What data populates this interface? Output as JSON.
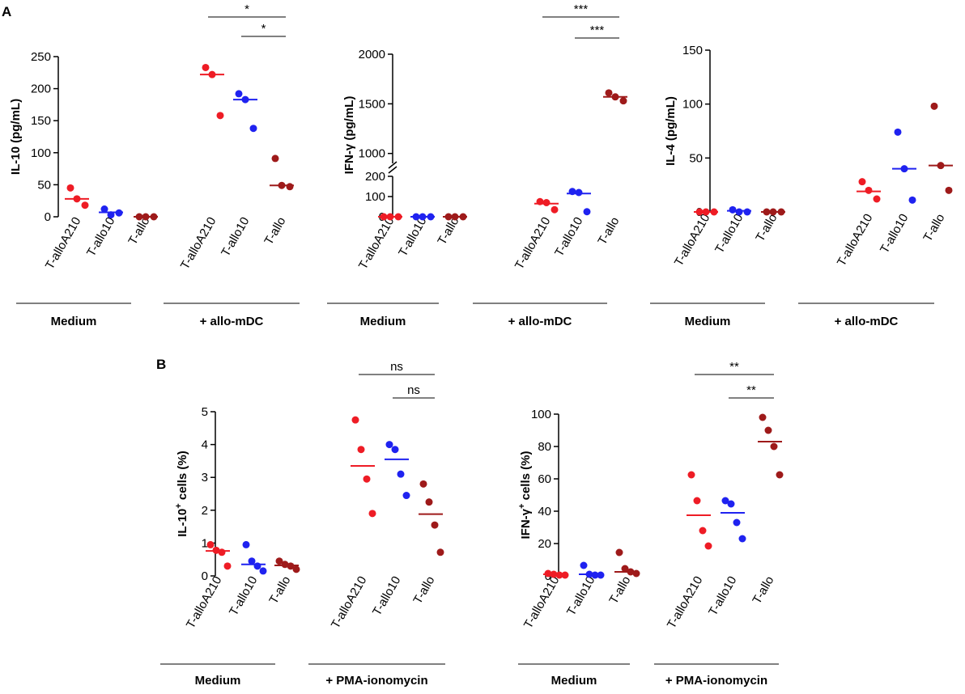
{
  "figure": {
    "panel_a_label": "A",
    "panel_b_label": "B",
    "colors": {
      "T-alloA210": "#ee1c25",
      "T-allo10": "#1f22f0",
      "T-allo": "#9e1a1a"
    }
  },
  "chart_data": [
    {
      "id": "il10",
      "type": "scatter",
      "ylabel": "IL-10 (pg/mL)",
      "ylim": [
        0,
        250
      ],
      "yticks": [
        0,
        50,
        100,
        150,
        200,
        250
      ],
      "categories": [
        "T-alloA210",
        "T-allo10",
        "T-allo",
        "T-alloA210",
        "T-allo10",
        "T-allo"
      ],
      "groups": [
        {
          "label": "Medium",
          "indices": [
            0,
            1,
            2
          ]
        },
        {
          "label": "+ allo-mDC",
          "indices": [
            3,
            4,
            5
          ]
        }
      ],
      "series": [
        {
          "name": "T-alloA210",
          "condition": "Medium",
          "values": [
            45,
            28,
            18
          ],
          "mean": 28
        },
        {
          "name": "T-allo10",
          "condition": "Medium",
          "values": [
            12,
            3,
            6
          ],
          "mean": 7
        },
        {
          "name": "T-allo",
          "condition": "Medium",
          "values": [
            0,
            0,
            0
          ],
          "mean": 0
        },
        {
          "name": "T-alloA210",
          "condition": "+ allo-mDC",
          "values": [
            233,
            222,
            158
          ],
          "mean": 222
        },
        {
          "name": "T-allo10",
          "condition": "+ allo-mDC",
          "values": [
            192,
            183,
            138
          ],
          "mean": 183
        },
        {
          "name": "T-allo",
          "condition": "+ allo-mDC",
          "values": [
            91,
            49,
            47
          ],
          "mean": 49
        }
      ],
      "annotations": [
        {
          "from": 3,
          "to": 5,
          "text": "*"
        },
        {
          "from": 4,
          "to": 5,
          "text": "*"
        }
      ]
    },
    {
      "id": "ifng",
      "type": "scatter",
      "ylabel": "IFN-γ (pg/mL)",
      "broken_axis": {
        "lower": [
          0,
          200
        ],
        "upper": [
          900,
          2000
        ]
      },
      "yticks": [
        0,
        100,
        200,
        1000,
        1500,
        2000
      ],
      "categories": [
        "T-alloA210",
        "T-allo10",
        "T-allo",
        "T-alloA210",
        "T-allo10",
        "T-allo"
      ],
      "groups": [
        {
          "label": "Medium",
          "indices": [
            0,
            1,
            2
          ]
        },
        {
          "label": "+ allo-mDC",
          "indices": [
            3,
            4,
            5
          ]
        }
      ],
      "series": [
        {
          "name": "T-alloA210",
          "condition": "Medium",
          "values": [
            0,
            0,
            0
          ],
          "mean": 0
        },
        {
          "name": "T-allo10",
          "condition": "Medium",
          "values": [
            0,
            0,
            0
          ],
          "mean": 0
        },
        {
          "name": "T-allo",
          "condition": "Medium",
          "values": [
            0,
            0,
            0
          ],
          "mean": 0
        },
        {
          "name": "T-alloA210",
          "condition": "+ allo-mDC",
          "values": [
            75,
            70,
            35
          ],
          "mean": 65
        },
        {
          "name": "T-allo10",
          "condition": "+ allo-mDC",
          "values": [
            125,
            120,
            25
          ],
          "mean": 115
        },
        {
          "name": "T-allo",
          "condition": "+ allo-mDC",
          "values": [
            1610,
            1570,
            1530
          ],
          "mean": 1570
        }
      ],
      "annotations": [
        {
          "from": 3,
          "to": 5,
          "text": "***"
        },
        {
          "from": 4,
          "to": 5,
          "text": "***"
        }
      ]
    },
    {
      "id": "il4",
      "type": "scatter",
      "ylabel": "IL-4 (pg/mL)",
      "ylim": [
        0,
        150
      ],
      "yticks": [
        0,
        50,
        100,
        150
      ],
      "categories": [
        "T-alloA210",
        "T-allo10",
        "T-allo",
        "T-alloA210",
        "T-allo10",
        "T-allo"
      ],
      "groups": [
        {
          "label": "Medium",
          "indices": [
            0,
            1,
            2
          ]
        },
        {
          "label": "+ allo-mDC",
          "indices": [
            3,
            4,
            5
          ]
        }
      ],
      "series": [
        {
          "name": "T-alloA210",
          "condition": "Medium",
          "values": [
            0,
            0,
            0
          ],
          "mean": 0
        },
        {
          "name": "T-allo10",
          "condition": "Medium",
          "values": [
            2,
            0,
            0
          ],
          "mean": 1
        },
        {
          "name": "T-allo",
          "condition": "Medium",
          "values": [
            0,
            0,
            0
          ],
          "mean": 0
        },
        {
          "name": "T-alloA210",
          "condition": "+ allo-mDC",
          "values": [
            28,
            20,
            12
          ],
          "mean": 19
        },
        {
          "name": "T-allo10",
          "condition": "+ allo-mDC",
          "values": [
            74,
            40,
            11
          ],
          "mean": 40
        },
        {
          "name": "T-allo",
          "condition": "+ allo-mDC",
          "values": [
            98,
            43,
            20
          ],
          "mean": 43
        }
      ],
      "annotations": []
    },
    {
      "id": "il10cells",
      "type": "scatter",
      "ylabel": "IL-10",
      "ylabel_sup": "+",
      "ylabel_suffix": " cells (%)",
      "ylim": [
        0,
        5
      ],
      "yticks": [
        0,
        1,
        2,
        3,
        4,
        5
      ],
      "categories": [
        "T-alloA210",
        "T-allo10",
        "T-allo",
        "T-alloA210",
        "T-allo10",
        "T-allo"
      ],
      "groups": [
        {
          "label": "Medium",
          "indices": [
            0,
            1,
            2
          ]
        },
        {
          "label": "+ PMA-ionomycin",
          "indices": [
            3,
            4,
            5
          ]
        }
      ],
      "series": [
        {
          "name": "T-alloA210",
          "condition": "Medium",
          "values": [
            0.95,
            0.78,
            0.72,
            0.3
          ],
          "mean": 0.76
        },
        {
          "name": "T-allo10",
          "condition": "Medium",
          "values": [
            0.95,
            0.45,
            0.3,
            0.15
          ],
          "mean": 0.35
        },
        {
          "name": "T-allo",
          "condition": "Medium",
          "values": [
            0.45,
            0.35,
            0.3,
            0.2
          ],
          "mean": 0.32
        },
        {
          "name": "T-alloA210",
          "condition": "+ PMA-ionomycin",
          "values": [
            4.75,
            3.85,
            2.95,
            1.9
          ],
          "mean": 3.35
        },
        {
          "name": "T-allo10",
          "condition": "+ PMA-ionomycin",
          "values": [
            4.0,
            3.85,
            3.1,
            2.45
          ],
          "mean": 3.55
        },
        {
          "name": "T-allo",
          "condition": "+ PMA-ionomycin",
          "values": [
            2.8,
            2.25,
            1.55,
            0.72
          ],
          "mean": 1.88
        }
      ],
      "annotations": [
        {
          "from": 3,
          "to": 5,
          "text": "ns"
        },
        {
          "from": 4,
          "to": 5,
          "text": "ns"
        }
      ]
    },
    {
      "id": "ifngcells",
      "type": "scatter",
      "ylabel": "IFN-γ",
      "ylabel_sup": "+",
      "ylabel_suffix": " cells (%)",
      "ylim": [
        0,
        100
      ],
      "yticks": [
        0,
        20,
        40,
        60,
        80,
        100
      ],
      "categories": [
        "T-alloA210",
        "T-allo10",
        "T-allo",
        "T-alloA210",
        "T-allo10",
        "T-allo"
      ],
      "groups": [
        {
          "label": "Medium",
          "indices": [
            0,
            1,
            2
          ]
        },
        {
          "label": "+ PMA-ionomycin",
          "indices": [
            3,
            4,
            5
          ]
        }
      ],
      "series": [
        {
          "name": "T-alloA210",
          "condition": "Medium",
          "values": [
            1.5,
            1,
            0.5,
            0.5
          ],
          "mean": 1
        },
        {
          "name": "T-allo10",
          "condition": "Medium",
          "values": [
            6.5,
            1,
            0.5,
            0.5
          ],
          "mean": 1
        },
        {
          "name": "T-allo",
          "condition": "Medium",
          "values": [
            14.5,
            4.5,
            2.5,
            1.5
          ],
          "mean": 2.5
        },
        {
          "name": "T-alloA210",
          "condition": "+ PMA-ionomycin",
          "values": [
            62.5,
            46.5,
            28,
            18.5
          ],
          "mean": 37.5
        },
        {
          "name": "T-allo10",
          "condition": "+ PMA-ionomycin",
          "values": [
            46.5,
            44.5,
            33,
            23
          ],
          "mean": 39
        },
        {
          "name": "T-allo",
          "condition": "+ PMA-ionomycin",
          "values": [
            98,
            90,
            80,
            62.5
          ],
          "mean": 83
        }
      ],
      "annotations": [
        {
          "from": 3,
          "to": 5,
          "text": "**"
        },
        {
          "from": 4,
          "to": 5,
          "text": "**"
        }
      ]
    }
  ]
}
